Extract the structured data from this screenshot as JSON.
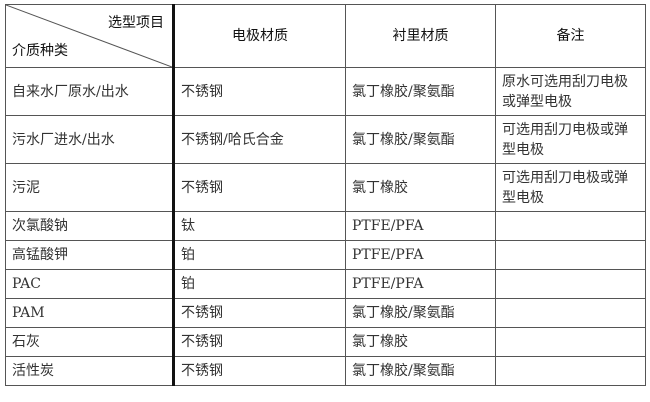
{
  "header": {
    "corner_top": "选型项目",
    "corner_bottom": "介质种类",
    "columns": [
      "电极材质",
      "衬里材质",
      "备注"
    ]
  },
  "rows": [
    [
      "自来水厂原水/出水",
      "不锈钢",
      "氯丁橡胶/聚氨酯",
      "原水可选用刮刀电极或弹型电极"
    ],
    [
      "污水厂进水/出水",
      "不锈钢/哈氏合金",
      "氯丁橡胶/聚氨酯",
      "可选用刮刀电极或弹型电极"
    ],
    [
      "污泥",
      "不锈钢",
      "氯丁橡胶",
      "可选用刮刀电极或弹型电极"
    ],
    [
      "次氯酸钠",
      "钛",
      "PTFE/PFA",
      ""
    ],
    [
      "高锰酸钾",
      "铂",
      "PTFE/PFA",
      ""
    ],
    [
      "PAC",
      "铂",
      "PTFE/PFA",
      ""
    ],
    [
      "PAM",
      "不锈钢",
      "氯丁橡胶/聚氨酯",
      ""
    ],
    [
      "石灰",
      "不锈钢",
      "氯丁橡胶",
      ""
    ],
    [
      "活性炭",
      "不锈钢",
      "氯丁橡胶/聚氨酯",
      ""
    ]
  ]
}
